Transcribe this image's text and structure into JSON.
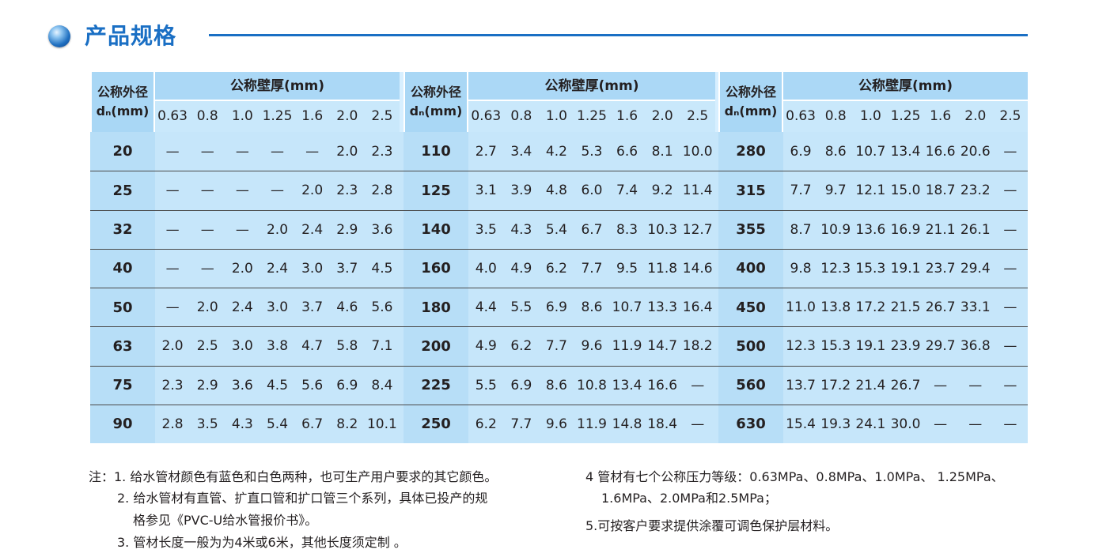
{
  "title": "产品规格",
  "header": {
    "dn_line1": "公称外径",
    "dn_line2": "dₙ(mm)",
    "wall_title": "公称壁厚(mm)",
    "thickness_cols": [
      "0.63",
      "0.8",
      "1.0",
      "1.25",
      "1.6",
      "2.0",
      "2.5"
    ]
  },
  "groups": [
    {
      "rows": [
        {
          "dn": "20",
          "vals": [
            "—",
            "—",
            "—",
            "—",
            "—",
            "2.0",
            "2.3"
          ]
        },
        {
          "dn": "25",
          "vals": [
            "—",
            "—",
            "—",
            "—",
            "2.0",
            "2.3",
            "2.8"
          ]
        },
        {
          "dn": "32",
          "vals": [
            "—",
            "—",
            "—",
            "2.0",
            "2.4",
            "2.9",
            "3.6"
          ]
        },
        {
          "dn": "40",
          "vals": [
            "—",
            "—",
            "2.0",
            "2.4",
            "3.0",
            "3.7",
            "4.5"
          ]
        },
        {
          "dn": "50",
          "vals": [
            "—",
            "2.0",
            "2.4",
            "3.0",
            "3.7",
            "4.6",
            "5.6"
          ]
        },
        {
          "dn": "63",
          "vals": [
            "2.0",
            "2.5",
            "3.0",
            "3.8",
            "4.7",
            "5.8",
            "7.1"
          ]
        },
        {
          "dn": "75",
          "vals": [
            "2.3",
            "2.9",
            "3.6",
            "4.5",
            "5.6",
            "6.9",
            "8.4"
          ]
        },
        {
          "dn": "90",
          "vals": [
            "2.8",
            "3.5",
            "4.3",
            "5.4",
            "6.7",
            "8.2",
            "10.1"
          ]
        }
      ]
    },
    {
      "rows": [
        {
          "dn": "110",
          "vals": [
            "2.7",
            "3.4",
            "4.2",
            "5.3",
            "6.6",
            "8.1",
            "10.0"
          ]
        },
        {
          "dn": "125",
          "vals": [
            "3.1",
            "3.9",
            "4.8",
            "6.0",
            "7.4",
            "9.2",
            "11.4"
          ]
        },
        {
          "dn": "140",
          "vals": [
            "3.5",
            "4.3",
            "5.4",
            "6.7",
            "8.3",
            "10.3",
            "12.7"
          ]
        },
        {
          "dn": "160",
          "vals": [
            "4.0",
            "4.9",
            "6.2",
            "7.7",
            "9.5",
            "11.8",
            "14.6"
          ]
        },
        {
          "dn": "180",
          "vals": [
            "4.4",
            "5.5",
            "6.9",
            "8.6",
            "10.7",
            "13.3",
            "16.4"
          ]
        },
        {
          "dn": "200",
          "vals": [
            "4.9",
            "6.2",
            "7.7",
            "9.6",
            "11.9",
            "14.7",
            "18.2"
          ]
        },
        {
          "dn": "225",
          "vals": [
            "5.5",
            "6.9",
            "8.6",
            "10.8",
            "13.4",
            "16.6",
            "—"
          ]
        },
        {
          "dn": "250",
          "vals": [
            "6.2",
            "7.7",
            "9.6",
            "11.9",
            "14.8",
            "18.4",
            "—"
          ]
        }
      ]
    },
    {
      "rows": [
        {
          "dn": "280",
          "vals": [
            "6.9",
            "8.6",
            "10.7",
            "13.4",
            "16.6",
            "20.6",
            "—"
          ]
        },
        {
          "dn": "315",
          "vals": [
            "7.7",
            "9.7",
            "12.1",
            "15.0",
            "18.7",
            "23.2",
            "—"
          ]
        },
        {
          "dn": "355",
          "vals": [
            "8.7",
            "10.9",
            "13.6",
            "16.9",
            "21.1",
            "26.1",
            "—"
          ]
        },
        {
          "dn": "400",
          "vals": [
            "9.8",
            "12.3",
            "15.3",
            "19.1",
            "23.7",
            "29.4",
            "—"
          ]
        },
        {
          "dn": "450",
          "vals": [
            "11.0",
            "13.8",
            "17.2",
            "21.5",
            "26.7",
            "33.1",
            "—"
          ]
        },
        {
          "dn": "500",
          "vals": [
            "12.3",
            "15.3",
            "19.1",
            "23.9",
            "29.7",
            "36.8",
            "—"
          ]
        },
        {
          "dn": "560",
          "vals": [
            "13.7",
            "17.2",
            "21.4",
            "26.7",
            "—",
            "—",
            "—"
          ]
        },
        {
          "dn": "630",
          "vals": [
            "15.4",
            "19.3",
            "24.1",
            "30.0",
            "—",
            "—",
            "—"
          ]
        }
      ]
    }
  ],
  "notes": {
    "left": [
      "注：1. 给水管材颜色有蓝色和白色两种，也可生产用户要求的其它颜色。",
      "2. 给水管材有直管、扩直口管和扩口管三个系列，具体已投产的规",
      "格参见《PVC-U给水管报价书》。",
      "3. 管材长度一般为为4米或6米，其他长度须定制 。"
    ],
    "right": [
      "4 管材有七个公称压力等级：0.63MPa、0.8MPa、1.0MPa、 1.25MPa、",
      "1.6MPa、2.0MPa和2.5MPa；",
      "5.可按客户要求提供涂覆可调色保护层材料。"
    ]
  },
  "colors": {
    "accent": "#1a6fc4",
    "table_bg": "#c6e6fa",
    "header_bg": "#abd8f6"
  }
}
